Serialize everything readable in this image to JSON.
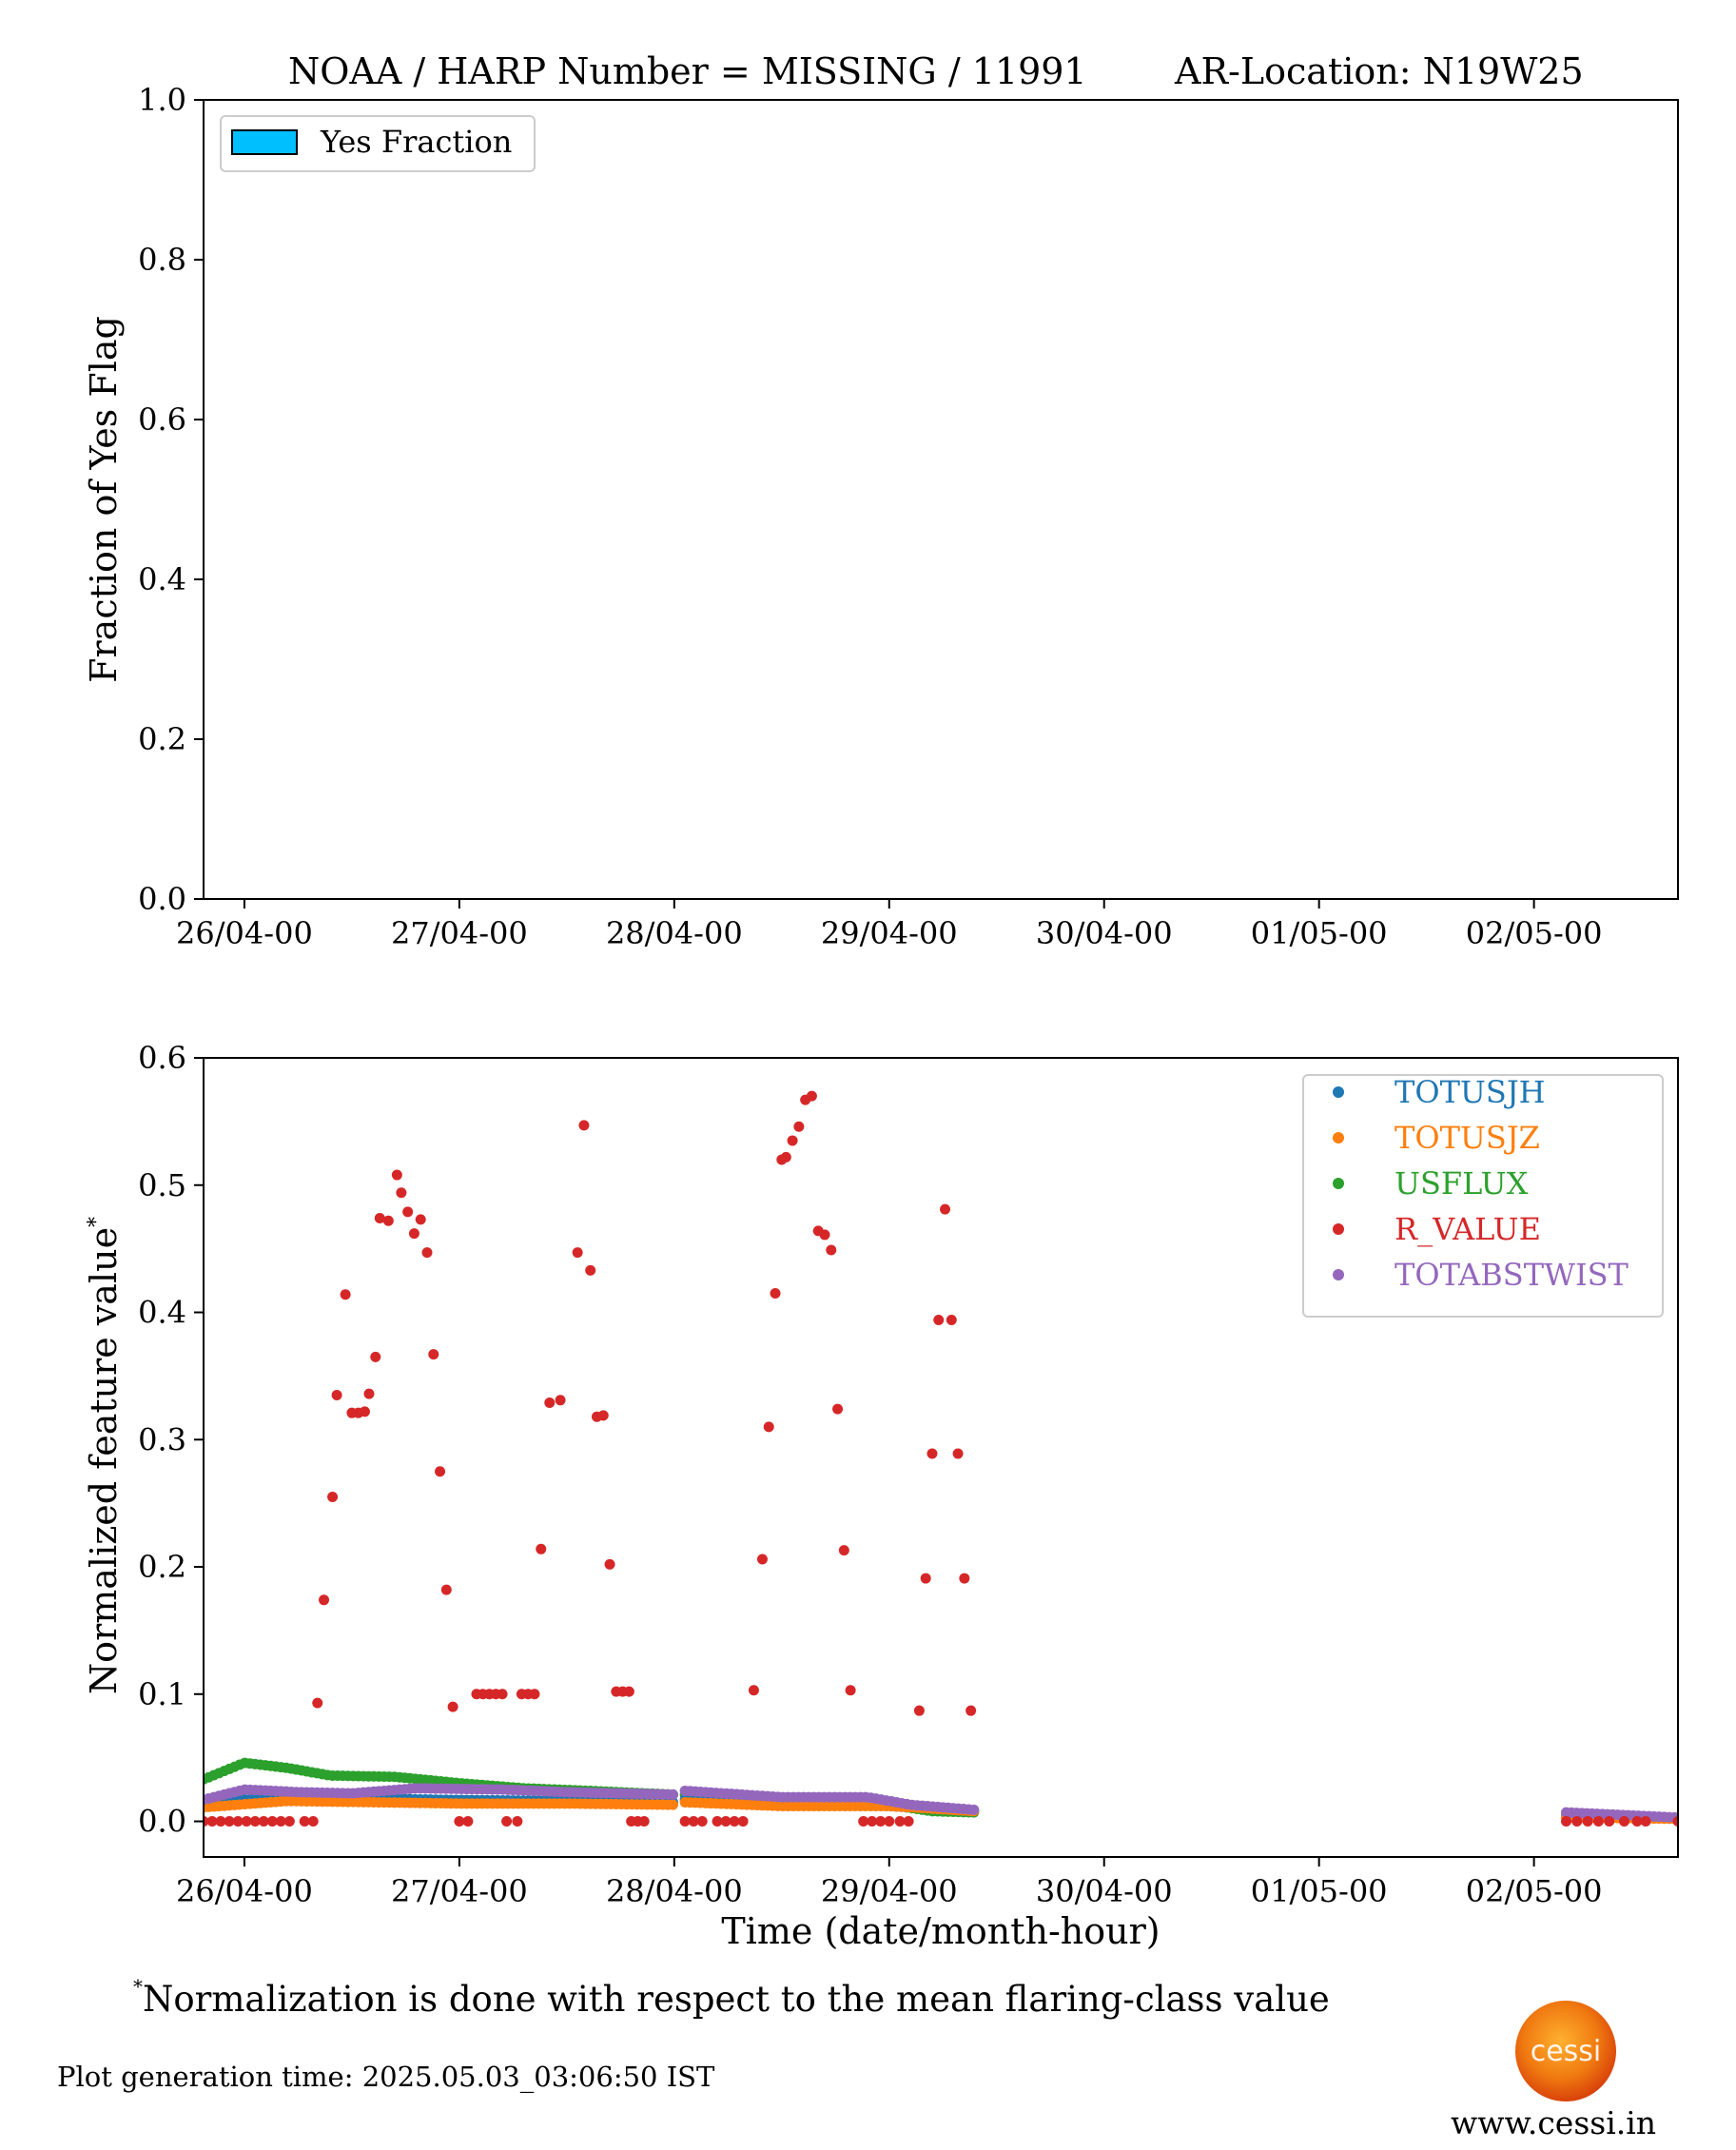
{
  "colors": {
    "totusjh": "#1f77b4",
    "totusjz": "#ff7f0e",
    "usflux": "#2ca02c",
    "r_value": "#d62728",
    "totabstwist": "#9467bd",
    "yes_fraction": "#00bfff"
  },
  "chart_data": [
    {
      "type": "bar",
      "title": "NOAA / HARP Number = MISSING / 11991",
      "title_right": "AR-Location: N19W25",
      "xlabel": "",
      "ylabel": "Fraction of Yes Flag",
      "xlim": [
        -0.19,
        6.67
      ],
      "ylim": [
        0,
        1
      ],
      "x_tick_values": [
        0,
        1,
        2,
        3,
        4,
        5,
        6
      ],
      "x_tick_labels": [
        "26/04-00",
        "27/04-00",
        "28/04-00",
        "29/04-00",
        "30/04-00",
        "01/05-00",
        "02/05-00"
      ],
      "y_ticks": [
        0,
        0.2,
        0.4,
        0.6,
        0.8,
        1.0
      ],
      "y_tick_labels": [
        "0.0",
        "0.2",
        "0.4",
        "0.6",
        "0.8",
        "1.0"
      ],
      "series": [
        {
          "name": "Yes Fraction",
          "values": []
        }
      ],
      "legend": {
        "position": "top-left",
        "entries": [
          "Yes Fraction"
        ]
      },
      "grid": false
    },
    {
      "type": "scatter",
      "xlabel": "Time (date/month-hour)",
      "ylabel": "Normalized feature value",
      "ylabel_superscript": "*",
      "x_unit_note": "x values in days since 26/04-00",
      "xlim": [
        -0.19,
        6.67
      ],
      "ylim": [
        -0.028,
        0.6
      ],
      "x_tick_values": [
        0,
        1,
        2,
        3,
        4,
        5,
        6
      ],
      "x_tick_labels": [
        "26/04-00",
        "27/04-00",
        "28/04-00",
        "29/04-00",
        "30/04-00",
        "01/05-00",
        "02/05-00"
      ],
      "y_ticks": [
        0,
        0.1,
        0.2,
        0.3,
        0.4,
        0.5,
        0.6
      ],
      "y_tick_labels": [
        "0.0",
        "0.1",
        "0.2",
        "0.3",
        "0.4",
        "0.5",
        "0.6"
      ],
      "legend": {
        "position": "top-right",
        "entries": [
          "TOTUSJH",
          "TOTUSJZ",
          "USFLUX",
          "R_VALUE",
          "TOTABSTWIST"
        ]
      },
      "grid": false,
      "series": [
        {
          "name": "TOTUSJH",
          "color_key": "totusjh",
          "segments": [
            {
              "x_start": -0.19,
              "x_end": 2.0,
              "y_points": [
                [
                  -0.19,
                  0.016
                ],
                [
                  0.3,
                  0.019
                ],
                [
                  0.9,
                  0.017
                ],
                [
                  1.5,
                  0.016
                ],
                [
                  2.0,
                  0.015
                ]
              ]
            },
            {
              "x_start": 2.05,
              "x_end": 3.4,
              "y_points": [
                [
                  2.05,
                  0.017
                ],
                [
                  2.6,
                  0.013
                ],
                [
                  3.0,
                  0.012
                ],
                [
                  3.4,
                  0.008
                ]
              ]
            },
            {
              "x_start": 6.15,
              "x_end": 6.67,
              "y_points": [
                [
                  6.15,
                  0.004
                ],
                [
                  6.67,
                  0.002
                ]
              ]
            }
          ]
        },
        {
          "name": "TOTUSJZ",
          "color_key": "totusjz",
          "segments": [
            {
              "x_start": -0.19,
              "x_end": 2.0,
              "y_points": [
                [
                  -0.19,
                  0.011
                ],
                [
                  0.2,
                  0.016
                ],
                [
                  0.6,
                  0.015
                ],
                [
                  1.0,
                  0.014
                ],
                [
                  1.5,
                  0.014
                ],
                [
                  2.0,
                  0.013
                ]
              ]
            },
            {
              "x_start": 2.05,
              "x_end": 3.4,
              "y_points": [
                [
                  2.05,
                  0.015
                ],
                [
                  2.5,
                  0.012
                ],
                [
                  3.0,
                  0.012
                ],
                [
                  3.4,
                  0.008
                ]
              ]
            },
            {
              "x_start": 6.15,
              "x_end": 6.67,
              "y_points": [
                [
                  6.15,
                  0.003
                ],
                [
                  6.67,
                  0.002
                ]
              ]
            }
          ]
        },
        {
          "name": "USFLUX",
          "color_key": "usflux",
          "segments": [
            {
              "x_start": -0.19,
              "x_end": 2.0,
              "y_points": [
                [
                  -0.19,
                  0.033
                ],
                [
                  0.0,
                  0.046
                ],
                [
                  0.2,
                  0.042
                ],
                [
                  0.4,
                  0.036
                ],
                [
                  0.7,
                  0.035
                ],
                [
                  1.0,
                  0.03
                ],
                [
                  1.3,
                  0.026
                ],
                [
                  1.6,
                  0.024
                ],
                [
                  2.0,
                  0.021
                ]
              ]
            },
            {
              "x_start": 2.05,
              "x_end": 3.4,
              "y_points": [
                [
                  2.05,
                  0.021
                ],
                [
                  2.4,
                  0.018
                ],
                [
                  2.8,
                  0.016
                ],
                [
                  3.0,
                  0.013
                ],
                [
                  3.2,
                  0.008
                ],
                [
                  3.4,
                  0.007
                ]
              ]
            },
            {
              "x_start": 6.15,
              "x_end": 6.67,
              "y_points": [
                [
                  6.15,
                  0.004
                ],
                [
                  6.67,
                  0.002
                ]
              ]
            }
          ]
        },
        {
          "name": "R_VALUE",
          "color_key": "r_value",
          "points": [
            [
              -0.19,
              0.0
            ],
            [
              -0.15,
              0.0
            ],
            [
              -0.11,
              0.0
            ],
            [
              -0.07,
              0.0
            ],
            [
              -0.03,
              0.0
            ],
            [
              0.01,
              0.0
            ],
            [
              0.05,
              0.0
            ],
            [
              0.09,
              0.0
            ],
            [
              0.13,
              0.0
            ],
            [
              0.17,
              0.0
            ],
            [
              0.21,
              0.0
            ],
            [
              0.28,
              0.0
            ],
            [
              0.32,
              0.0
            ],
            [
              0.34,
              0.093
            ],
            [
              0.37,
              0.174
            ],
            [
              0.41,
              0.255
            ],
            [
              0.43,
              0.335
            ],
            [
              0.47,
              0.414
            ],
            [
              0.5,
              0.321
            ],
            [
              0.53,
              0.321
            ],
            [
              0.56,
              0.322
            ],
            [
              0.58,
              0.336
            ],
            [
              0.61,
              0.365
            ],
            [
              0.63,
              0.474
            ],
            [
              0.67,
              0.472
            ],
            [
              0.71,
              0.508
            ],
            [
              0.73,
              0.494
            ],
            [
              0.76,
              0.479
            ],
            [
              0.79,
              0.462
            ],
            [
              0.82,
              0.473
            ],
            [
              0.85,
              0.447
            ],
            [
              0.88,
              0.367
            ],
            [
              0.91,
              0.275
            ],
            [
              0.94,
              0.182
            ],
            [
              0.97,
              0.09
            ],
            [
              1.0,
              0.0
            ],
            [
              1.04,
              0.0
            ],
            [
              1.08,
              0.1
            ],
            [
              1.11,
              0.1
            ],
            [
              1.14,
              0.1
            ],
            [
              1.17,
              0.1
            ],
            [
              1.2,
              0.1
            ],
            [
              1.22,
              0.0
            ],
            [
              1.27,
              0.0
            ],
            [
              1.29,
              0.1
            ],
            [
              1.32,
              0.1
            ],
            [
              1.35,
              0.1
            ],
            [
              1.38,
              0.214
            ],
            [
              1.42,
              0.329
            ],
            [
              1.47,
              0.331
            ],
            [
              1.55,
              0.447
            ],
            [
              1.58,
              0.547
            ],
            [
              1.61,
              0.433
            ],
            [
              1.64,
              0.318
            ],
            [
              1.67,
              0.319
            ],
            [
              1.7,
              0.202
            ],
            [
              1.73,
              0.102
            ],
            [
              1.76,
              0.102
            ],
            [
              1.79,
              0.102
            ],
            [
              1.8,
              0.0
            ],
            [
              1.83,
              0.0
            ],
            [
              1.86,
              0.0
            ],
            [
              2.05,
              0.0
            ],
            [
              2.09,
              0.0
            ],
            [
              2.13,
              0.0
            ],
            [
              2.2,
              0.0
            ],
            [
              2.24,
              0.0
            ],
            [
              2.28,
              0.0
            ],
            [
              2.32,
              0.0
            ],
            [
              2.37,
              0.103
            ],
            [
              2.41,
              0.206
            ],
            [
              2.44,
              0.31
            ],
            [
              2.47,
              0.415
            ],
            [
              2.5,
              0.52
            ],
            [
              2.52,
              0.522
            ],
            [
              2.55,
              0.535
            ],
            [
              2.58,
              0.546
            ],
            [
              2.61,
              0.567
            ],
            [
              2.64,
              0.57
            ],
            [
              2.67,
              0.464
            ],
            [
              2.7,
              0.461
            ],
            [
              2.73,
              0.449
            ],
            [
              2.76,
              0.324
            ],
            [
              2.79,
              0.213
            ],
            [
              2.82,
              0.103
            ],
            [
              2.88,
              0.0
            ],
            [
              2.92,
              0.0
            ],
            [
              2.96,
              0.0
            ],
            [
              3.0,
              0.0
            ],
            [
              3.05,
              0.0
            ],
            [
              3.09,
              0.0
            ],
            [
              3.14,
              0.087
            ],
            [
              3.17,
              0.191
            ],
            [
              3.2,
              0.289
            ],
            [
              3.23,
              0.394
            ],
            [
              3.26,
              0.481
            ],
            [
              3.29,
              0.394
            ],
            [
              3.32,
              0.289
            ],
            [
              3.35,
              0.191
            ],
            [
              3.38,
              0.087
            ],
            [
              6.15,
              0.0
            ],
            [
              6.2,
              0.0
            ],
            [
              6.25,
              0.0
            ],
            [
              6.3,
              0.0
            ],
            [
              6.35,
              0.0
            ],
            [
              6.42,
              0.0
            ],
            [
              6.48,
              0.0
            ],
            [
              6.52,
              0.0
            ],
            [
              6.67,
              0.0
            ]
          ]
        },
        {
          "name": "TOTABSTWIST",
          "color_key": "totabstwist",
          "segments": [
            {
              "x_start": -0.19,
              "x_end": 2.0,
              "y_points": [
                [
                  -0.19,
                  0.017
                ],
                [
                  0.0,
                  0.025
                ],
                [
                  0.25,
                  0.023
                ],
                [
                  0.5,
                  0.022
                ],
                [
                  0.8,
                  0.026
                ],
                [
                  1.2,
                  0.025
                ],
                [
                  1.5,
                  0.023
                ],
                [
                  2.0,
                  0.021
                ]
              ]
            },
            {
              "x_start": 2.05,
              "x_end": 3.4,
              "y_points": [
                [
                  2.05,
                  0.024
                ],
                [
                  2.5,
                  0.019
                ],
                [
                  2.9,
                  0.019
                ],
                [
                  3.1,
                  0.013
                ],
                [
                  3.4,
                  0.009
                ]
              ]
            },
            {
              "x_start": 6.15,
              "x_end": 6.67,
              "y_points": [
                [
                  6.15,
                  0.007
                ],
                [
                  6.67,
                  0.003
                ]
              ]
            }
          ]
        }
      ]
    }
  ],
  "footnote": {
    "marker": "*",
    "text": "Normalization is done with respect to the mean flaring-class value"
  },
  "generation_time": "Plot generation time: 2025.05.03_03:06:50 IST",
  "logo_text": "cessi",
  "website": "www.cessi.in"
}
